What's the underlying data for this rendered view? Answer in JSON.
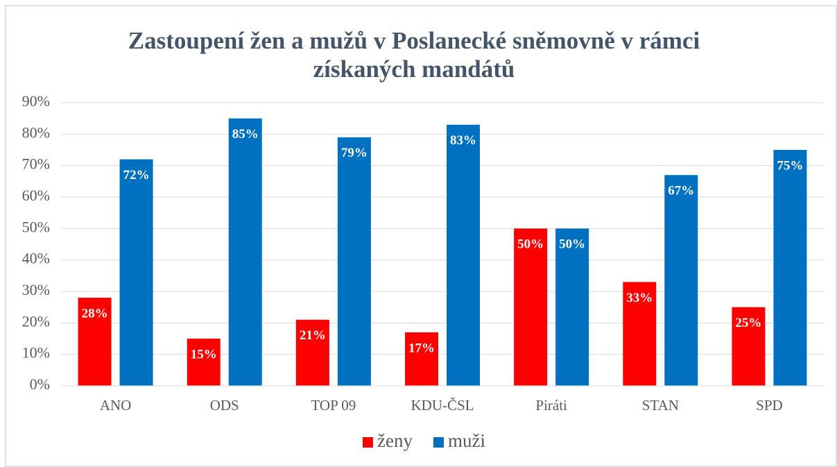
{
  "chart_data": {
    "type": "bar",
    "title": "Zastoupení žen a mužů v Poslanecké sněmovně v rámci získaných mandátů",
    "categories": [
      "ANO",
      "ODS",
      "TOP 09",
      "KDU-ČSL",
      "Piráti",
      "STAN",
      "SPD"
    ],
    "series": [
      {
        "name": "ženy",
        "color": "#ff0000",
        "values": [
          28,
          15,
          21,
          17,
          50,
          33,
          25
        ],
        "value_labels": [
          "28%",
          "15%",
          "21%",
          "17%",
          "50%",
          "33%",
          "25%"
        ]
      },
      {
        "name": "muži",
        "color": "#0070c0",
        "values": [
          72,
          85,
          79,
          83,
          50,
          67,
          75
        ],
        "value_labels": [
          "72%",
          "85%",
          "79%",
          "83%",
          "50%",
          "67%",
          "75%"
        ]
      }
    ],
    "ylim": [
      0,
      90
    ],
    "yticks": [
      {
        "value": 0,
        "label": "0%"
      },
      {
        "value": 10,
        "label": "10%"
      },
      {
        "value": 20,
        "label": "20%"
      },
      {
        "value": 30,
        "label": "30%"
      },
      {
        "value": 40,
        "label": "40%"
      },
      {
        "value": 50,
        "label": "50%"
      },
      {
        "value": 60,
        "label": "60%"
      },
      {
        "value": 70,
        "label": "70%"
      },
      {
        "value": 80,
        "label": "80%"
      },
      {
        "value": 90,
        "label": "90%"
      }
    ],
    "grid": true,
    "legend": "bottom"
  }
}
